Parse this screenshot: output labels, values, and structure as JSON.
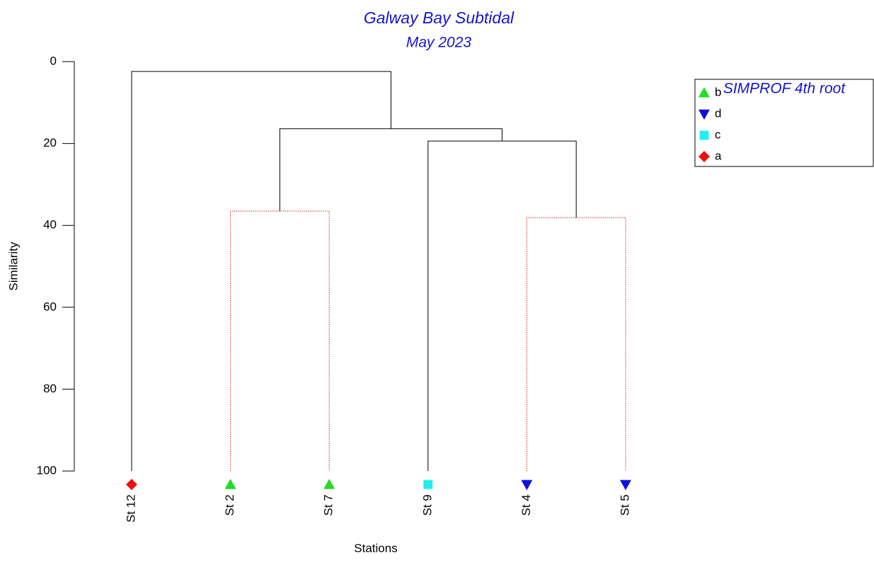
{
  "chart_data": {
    "type": "dendrogram",
    "title": "Galway Bay Subtidal",
    "subtitle": "May 2023",
    "ylabel": "Similarity",
    "xlabel": "Stations",
    "ylim": [
      0,
      100
    ],
    "yticks": [
      0,
      20,
      40,
      60,
      80,
      100
    ],
    "legend_title": "SIMPROF 4th root",
    "groups": [
      {
        "name": "b",
        "color": "#22dd22",
        "marker": "triangle-up"
      },
      {
        "name": "d",
        "color": "#1010dd",
        "marker": "triangle-down"
      },
      {
        "name": "c",
        "color": "#22eeee",
        "marker": "square"
      },
      {
        "name": "a",
        "color": "#ee1111",
        "marker": "diamond"
      }
    ],
    "leaves": [
      {
        "label": "St 12",
        "group": "a"
      },
      {
        "label": "St 2",
        "group": "b"
      },
      {
        "label": "St 7",
        "group": "b"
      },
      {
        "label": "St 9",
        "group": "c"
      },
      {
        "label": "St 4",
        "group": "d"
      },
      {
        "label": "St 5",
        "group": "d"
      }
    ],
    "merges": [
      {
        "left": 1,
        "right": 2,
        "height": 36.5,
        "color": "#dd2222",
        "dotted": true
      },
      {
        "left": 4,
        "right": 5,
        "height": 38.1,
        "color": "#dd2222",
        "dotted": true
      },
      {
        "left": 3,
        "right": 7,
        "height": 19.4,
        "color": "#000000",
        "dotted": false
      },
      {
        "left": 6,
        "right": 8,
        "height": 16.4,
        "color": "#000000",
        "dotted": false
      },
      {
        "left": 0,
        "right": 9,
        "height": 2.4,
        "color": "#000000",
        "dotted": false
      }
    ]
  }
}
